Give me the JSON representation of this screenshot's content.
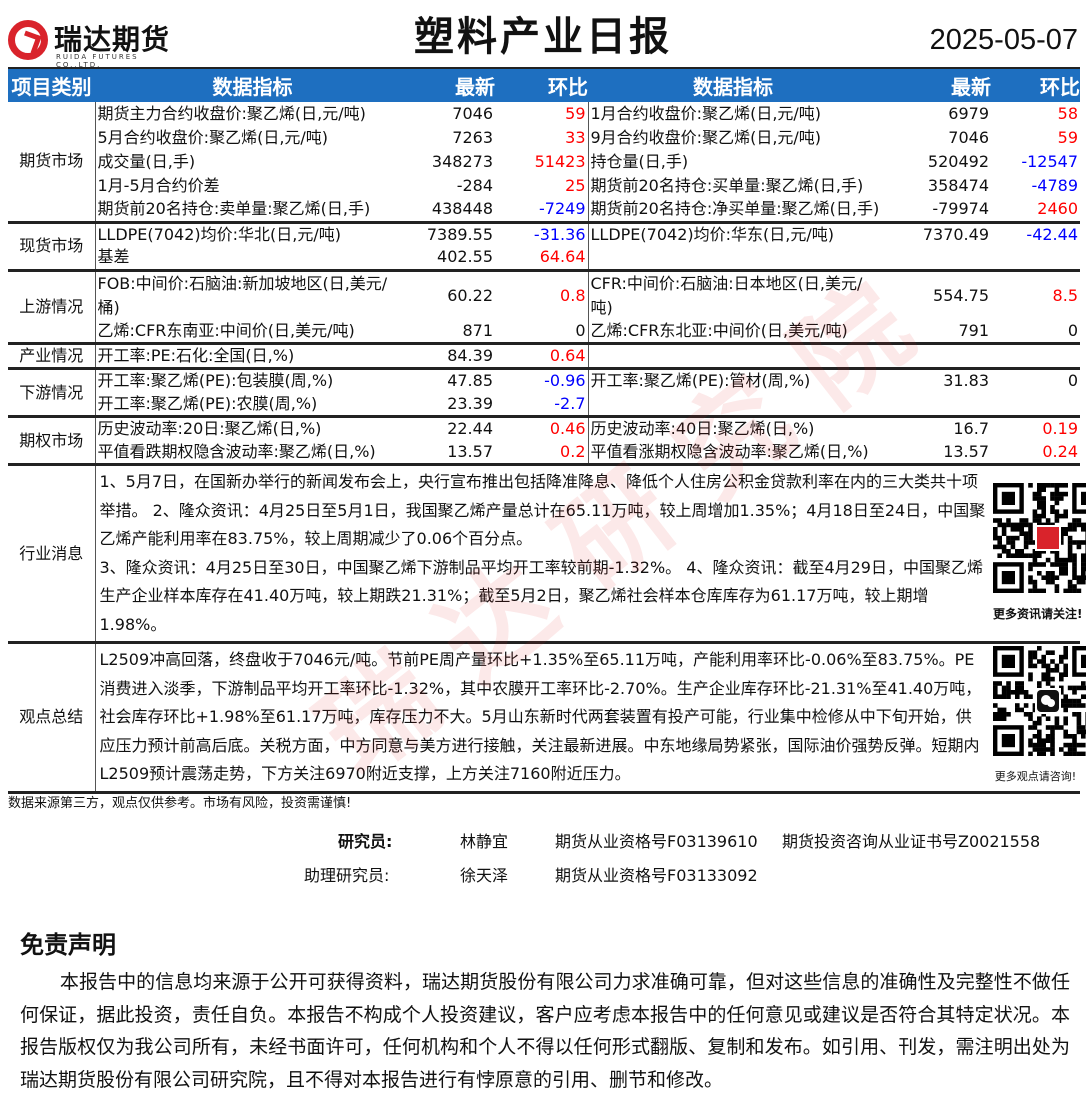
{
  "header": {
    "logo_cn": "瑞达期货",
    "logo_en": "RUIDA FUTURES CO.,LTD.",
    "title": "塑料产业日报",
    "date": "2025-05-07"
  },
  "table": {
    "columns": {
      "category": "项目类别",
      "indicator": "数据指标",
      "latest": "最新",
      "change": "环比",
      "indicator2": "数据指标",
      "latest2": "最新",
      "change2": "环比"
    },
    "sections": [
      {
        "category": "期货市场",
        "rows": [
          {
            "l": [
              "期货主力合约收盘价:聚乙烯(日,元/吨)",
              "7046",
              "59"
            ],
            "r": [
              "1月合约收盘价:聚乙烯(日,元/吨)",
              "6979",
              "58"
            ]
          },
          {
            "l": [
              "5月合约收盘价:聚乙烯(日,元/吨)",
              "7263",
              "33"
            ],
            "r": [
              "9月合约收盘价:聚乙烯(日,元/吨)",
              "7046",
              "59"
            ]
          },
          {
            "l": [
              "成交量(日,手)",
              "348273",
              "51423"
            ],
            "r": [
              "持仓量(日,手)",
              "520492",
              "-12547"
            ]
          },
          {
            "l": [
              "1月-5月合约价差",
              "-284",
              "25"
            ],
            "r": [
              "期货前20名持仓:买单量:聚乙烯(日,手)",
              "358474",
              "-4789"
            ]
          },
          {
            "l": [
              "期货前20名持仓:卖单量:聚乙烯(日,手)",
              "438448",
              "-7249"
            ],
            "r": [
              "期货前20名持仓:净买单量:聚乙烯(日,手)",
              "-79974",
              "2460"
            ]
          }
        ]
      },
      {
        "category": "现货市场",
        "rows": [
          {
            "l": [
              "LLDPE(7042)均价:华北(日,元/吨)",
              "7389.55",
              "-31.36"
            ],
            "r": [
              "LLDPE(7042)均价:华东(日,元/吨)",
              "7370.49",
              "-42.44"
            ]
          },
          {
            "l": [
              "基差",
              "402.55",
              "64.64"
            ],
            "r": [
              "",
              "",
              ""
            ]
          }
        ]
      },
      {
        "category": "上游情况",
        "rows": [
          {
            "l": [
              "FOB:中间价:石脑油:新加坡地区(日,美元/桶)",
              "60.22",
              "0.8"
            ],
            "r": [
              "CFR:中间价:石脑油:日本地区(日,美元/吨)",
              "554.75",
              "8.5"
            ],
            "wrap": true
          },
          {
            "l": [
              "乙烯:CFR东南亚:中间价(日,美元/吨)",
              "871",
              "0"
            ],
            "r": [
              "乙烯:CFR东北亚:中间价(日,美元/吨)",
              "791",
              "0"
            ]
          }
        ]
      },
      {
        "category": "产业情况",
        "rows": [
          {
            "l": [
              "开工率:PE:石化:全国(日,%)",
              "84.39",
              "0.64"
            ],
            "r": [
              "",
              "",
              ""
            ]
          }
        ]
      },
      {
        "category": "下游情况",
        "rows": [
          {
            "l": [
              "开工率:聚乙烯(PE):包装膜(周,%)",
              "47.85",
              "-0.96"
            ],
            "r": [
              "开工率:聚乙烯(PE):管材(周,%)",
              "31.83",
              "0"
            ]
          },
          {
            "l": [
              "开工率:聚乙烯(PE):农膜(周,%)",
              "23.39",
              "-2.7"
            ],
            "r": [
              "",
              "",
              ""
            ]
          }
        ]
      },
      {
        "category": "期权市场",
        "rows": [
          {
            "l": [
              "历史波动率:20日:聚乙烯(日,%)",
              "22.44",
              "0.46"
            ],
            "r": [
              "历史波动率:40日:聚乙烯(日,%)",
              "16.7",
              "0.19"
            ]
          },
          {
            "l": [
              "平值看跌期权隐含波动率:聚乙烯(日,%)",
              "13.57",
              "0.2"
            ],
            "r": [
              "平值看涨期权隐含波动率:聚乙烯(日,%)",
              "13.57",
              "0.24"
            ]
          }
        ]
      }
    ],
    "news": {
      "category": "行业消息",
      "p1": "1、5月7日，在国新办举行的新闻发布会上，央行宣布推出包括降准降息、降低个人住房公积金贷款利率在内的三大类共十项举措。 2、隆众资讯：4月25日至5月1日，我国聚乙烯产量总计在65.11万吨，较上周增加1.35%；4月18日至24日，中国聚乙烯产能利用率在83.75%，较上周期减少了0.06个百分点。",
      "p2": "3、隆众资讯：4月25日至30日，中国聚乙烯下游制品平均开工率较前期-1.32%。 4、隆众资讯：截至4月29日，中国聚乙烯生产企业样本库存在41.40万吨，较上期跌21.31%；截至5月2日，聚乙烯社会样本仓库库存为61.17万吨，较上期增1.98%。",
      "qr_caption": "更多资讯请关注!"
    },
    "views": {
      "category": "观点总结",
      "text": "L2509冲高回落，终盘收于7046元/吨。节前PE周产量环比+1.35%至65.11万吨，产能利用率环比-0.06%至83.75%。PE消费进入淡季，下游制品平均开工率环比-1.32%，其中农膜开工率环比-2.70%。生产企业库存环比-21.31%至41.40万吨，社会库存环比+1.98%至61.17万吨，库存压力不大。5月山东新时代两套装置有投产可能，行业集中检修从中下旬开始，供应压力预计前高后底。关税方面，中方同意与美方进行接触，关注最新进展。中东地缘局势紧张，国际油价强势反弹。短期内L2509预计震荡走势，下方关注6970附近支撑，上方关注7160附近压力。",
      "qr_caption": "更多观点请咨询!"
    }
  },
  "colors": {
    "header_blue": "#1e6fc0",
    "positive": "#ff0000",
    "negative": "#0000ff",
    "brand_red": "#d9232b"
  },
  "footer": {
    "note": "数据来源第三方，观点仅供参考。市场有风险，投资需谨慎!",
    "researcher_label": "研究员:",
    "researcher_name": "林静宜",
    "researcher_cert1": "期货从业资格号F03139610",
    "researcher_cert2": "期货投资咨询从业证书号Z0021558",
    "assistant_label": "助理研究员:",
    "assistant_name": "徐天泽",
    "assistant_cert": "期货从业资格号F03133092"
  },
  "disclaimer": {
    "title": "免责声明",
    "text": "本报告中的信息均来源于公开可获得资料，瑞达期货股份有限公司力求准确可靠，但对这些信息的准确性及完整性不做任何保证，据此投资，责任自负。本报告不构成个人投资建议，客户应考虑本报告中的任何意见或建议是否符合其特定状况。本报告版权仅为我公司所有，未经书面许可，任何机构和个人不得以任何形式翻版、复制和发布。如引用、刊发，需注明出处为瑞达期货股份有限公司研究院，且不得对本报告进行有悖原意的引用、删节和修改。"
  },
  "watermark": "瑞达研究院"
}
